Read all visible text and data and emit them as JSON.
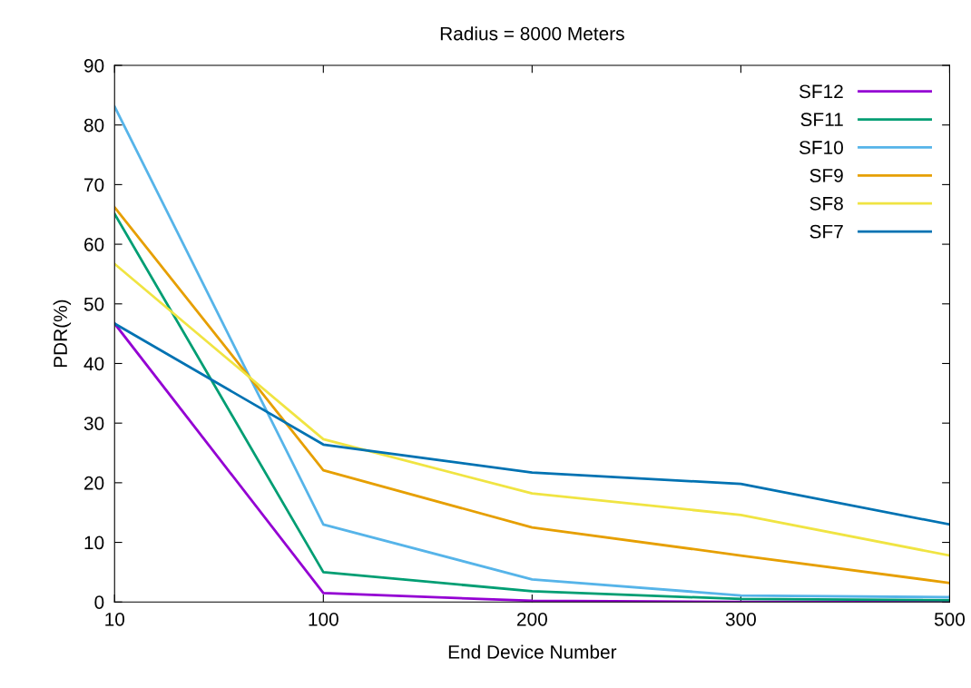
{
  "chart_data": {
    "type": "line",
    "title": "Radius = 8000 Meters",
    "xlabel": "End Device Number",
    "ylabel": "PDR(%)",
    "categories": [
      "10",
      "100",
      "200",
      "300",
      "500"
    ],
    "series": [
      {
        "name": "SF12",
        "color": "#9400d3",
        "values": [
          46.7,
          1.5,
          0.2,
          0,
          0
        ]
      },
      {
        "name": "SF11",
        "color": "#009e73",
        "values": [
          65.1,
          5.0,
          1.8,
          0.5,
          0.3
        ]
      },
      {
        "name": "SF10",
        "color": "#56b4e9",
        "values": [
          83.1,
          13.0,
          3.8,
          1.1,
          0.8
        ]
      },
      {
        "name": "SF9",
        "color": "#e69f00",
        "values": [
          66.2,
          22.1,
          12.5,
          7.8,
          3.2
        ]
      },
      {
        "name": "SF8",
        "color": "#f0e442",
        "values": [
          56.7,
          27.3,
          18.2,
          14.6,
          7.8
        ]
      },
      {
        "name": "SF7",
        "color": "#0072b2",
        "values": [
          46.7,
          26.4,
          21.7,
          19.8,
          13.0
        ]
      }
    ],
    "ylim": [
      0,
      90
    ],
    "yticks": [
      0,
      10,
      20,
      30,
      40,
      50,
      60,
      70,
      80,
      90
    ],
    "grid": false,
    "legend": "top right",
    "marker": "none",
    "line_style": "solid"
  }
}
